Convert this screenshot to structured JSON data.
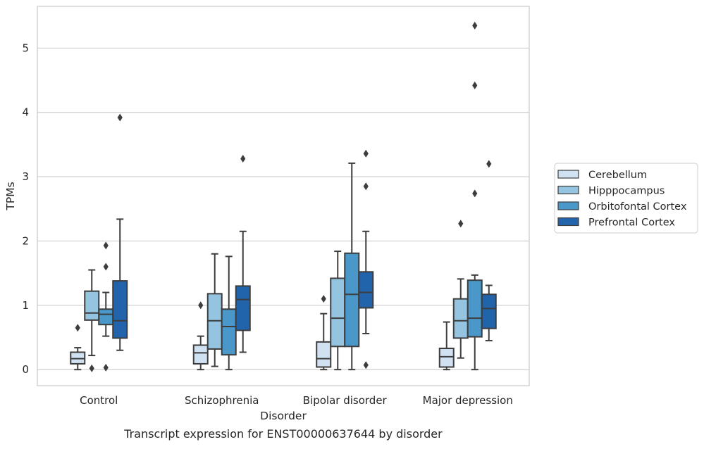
{
  "chart_data": {
    "type": "box",
    "xlabel": "Disorder",
    "ylabel": "TPMs",
    "caption": "Transcript expression for ENST00000637644 by disorder",
    "ylim": [
      -0.25,
      5.65
    ],
    "yticks": [
      "0",
      "1",
      "2",
      "3",
      "4",
      "5"
    ],
    "grid": "horizontal",
    "legend_position": "right",
    "categories": [
      "Control",
      "Schizophrenia",
      "Bipolar disorder",
      "Major depression"
    ],
    "series": [
      {
        "name": "Cerebellum",
        "color": "#d0e1f2",
        "boxes": [
          {
            "whislo": 0.0,
            "q1": 0.09,
            "med": 0.17,
            "q3": 0.27,
            "whishi": 0.34,
            "fliers": [
              0.65
            ]
          },
          {
            "whislo": 0.0,
            "q1": 0.09,
            "med": 0.26,
            "q3": 0.38,
            "whishi": 0.52,
            "fliers": [
              1.0
            ]
          },
          {
            "whislo": 0.0,
            "q1": 0.04,
            "med": 0.17,
            "q3": 0.43,
            "whishi": 0.87,
            "fliers": [
              1.1
            ]
          },
          {
            "whislo": 0.0,
            "q1": 0.04,
            "med": 0.2,
            "q3": 0.33,
            "whishi": 0.74,
            "fliers": []
          }
        ]
      },
      {
        "name": "Hipppocampus",
        "color": "#94c4df",
        "boxes": [
          {
            "whislo": 0.22,
            "q1": 0.77,
            "med": 0.88,
            "q3": 1.22,
            "whishi": 1.55,
            "fliers": [
              0.02
            ]
          },
          {
            "whislo": 0.05,
            "q1": 0.32,
            "med": 0.76,
            "q3": 1.18,
            "whishi": 1.8,
            "fliers": []
          },
          {
            "whislo": 0.0,
            "q1": 0.36,
            "med": 0.8,
            "q3": 1.42,
            "whishi": 1.84,
            "fliers": []
          },
          {
            "whislo": 0.18,
            "q1": 0.49,
            "med": 0.76,
            "q3": 1.1,
            "whishi": 1.41,
            "fliers": [
              2.27
            ]
          }
        ]
      },
      {
        "name": "Orbitofontal Cortex",
        "color": "#4a98c9",
        "boxes": [
          {
            "whislo": 0.52,
            "q1": 0.7,
            "med": 0.86,
            "q3": 0.94,
            "whishi": 1.2,
            "fliers": [
              1.93,
              1.6,
              0.03
            ]
          },
          {
            "whislo": 0.0,
            "q1": 0.23,
            "med": 0.67,
            "q3": 0.94,
            "whishi": 1.76,
            "fliers": []
          },
          {
            "whislo": 0.0,
            "q1": 0.36,
            "med": 1.17,
            "q3": 1.81,
            "whishi": 3.21,
            "fliers": []
          },
          {
            "whislo": 0.0,
            "q1": 0.51,
            "med": 0.8,
            "q3": 1.39,
            "whishi": 1.47,
            "fliers": [
              5.35,
              4.42,
              2.74
            ]
          }
        ]
      },
      {
        "name": "Prefrontal Cortex",
        "color": "#2164ab",
        "boxes": [
          {
            "whislo": 0.3,
            "q1": 0.49,
            "med": 0.76,
            "q3": 1.38,
            "whishi": 2.34,
            "fliers": [
              3.92
            ]
          },
          {
            "whislo": 0.27,
            "q1": 0.61,
            "med": 1.09,
            "q3": 1.3,
            "whishi": 2.15,
            "fliers": [
              3.28
            ]
          },
          {
            "whislo": 0.56,
            "q1": 0.96,
            "med": 1.2,
            "q3": 1.52,
            "whishi": 2.15,
            "fliers": [
              3.36,
              2.85,
              0.07
            ]
          },
          {
            "whislo": 0.45,
            "q1": 0.64,
            "med": 0.95,
            "q3": 1.17,
            "whishi": 1.31,
            "fliers": [
              3.2
            ]
          }
        ]
      }
    ]
  }
}
